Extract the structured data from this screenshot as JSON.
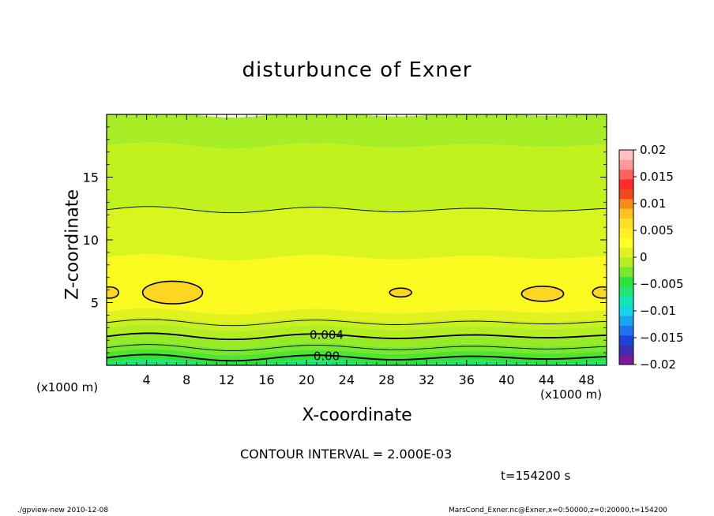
{
  "chart_data": {
    "type": "contour",
    "title": "disturbunce of Exner",
    "xlabel": "X-coordinate",
    "ylabel": "Z-coordinate",
    "x_unit_label": "(x1000 m)",
    "xlim": [
      0,
      50
    ],
    "ylim": [
      0,
      20
    ],
    "x_ticks": [
      4,
      8,
      12,
      16,
      20,
      24,
      28,
      32,
      36,
      40,
      44,
      48
    ],
    "y_ticks": [
      5,
      10,
      15
    ],
    "contour_interval_text": "CONTOUR INTERVAL = 2.000E-03",
    "contour_labels": [
      "0.004",
      "0.00"
    ],
    "time_label": "t=154200 s",
    "colorbar": {
      "range": [
        -0.02,
        0.02
      ],
      "tick_labels": [
        "0.02",
        "0.015",
        "0.01",
        "0.005",
        "0",
        "−0.005",
        "−0.01",
        "−0.015",
        "−0.02"
      ],
      "colors": [
        "#7a1a9a",
        "#3b2fb0",
        "#1a44d8",
        "#1f73f2",
        "#19a4ef",
        "#14d4ea",
        "#10e6b4",
        "#1ee678",
        "#2ee23c",
        "#78e82a",
        "#b2ee22",
        "#e2f21e",
        "#ffff20",
        "#fff020",
        "#fde020",
        "#fcc21e",
        "#f98a1c",
        "#f4461a",
        "#ff2a2a",
        "#ff6060",
        "#ff9898",
        "#ffc0c0"
      ]
    },
    "bands_z": [
      {
        "z_top": 0.22,
        "color": "#1ee678"
      },
      {
        "z_top": 0.55,
        "color": "#2ee23c"
      },
      {
        "z_top": 1.05,
        "color": "#50e430"
      },
      {
        "z_top": 1.6,
        "color": "#78e82a"
      },
      {
        "z_top": 2.2,
        "color": "#96eb26"
      },
      {
        "z_top": 3.0,
        "color": "#b2ee22"
      },
      {
        "z_top": 3.6,
        "color": "#c8f01e"
      },
      {
        "z_top": 4.3,
        "color": "#e2f21e"
      },
      {
        "z_top": 8.6,
        "color": "#fafa20"
      },
      {
        "z_top": 12.3,
        "color": "#d8f61e"
      },
      {
        "z_top": 17.5,
        "color": "#c2f21e"
      },
      {
        "z_top": 20.0,
        "color": "#a8ee26"
      }
    ],
    "contours_z": [
      {
        "z": 0.6,
        "thick": true
      },
      {
        "z": 1.4,
        "thick": false
      },
      {
        "z": 2.3,
        "thick": true
      },
      {
        "z": 3.4,
        "thick": false
      },
      {
        "z": 12.4,
        "thick": false
      }
    ],
    "blobs": [
      {
        "x": 6.6,
        "z": 5.8,
        "rx": 3.0,
        "rz": 0.9,
        "color": "#fcd620"
      },
      {
        "x": 29.4,
        "z": 5.8,
        "rx": 1.1,
        "rz": 0.35,
        "color": "#fcd620"
      },
      {
        "x": 43.6,
        "z": 5.7,
        "rx": 2.1,
        "rz": 0.6,
        "color": "#fcd620"
      },
      {
        "x": 49.6,
        "z": 5.8,
        "rx": 1.0,
        "rz": 0.45,
        "color": "#fcd620"
      },
      {
        "x": 0.3,
        "z": 5.8,
        "rx": 0.9,
        "rz": 0.45,
        "color": "#fcd620"
      }
    ]
  },
  "footer": {
    "left": "./gpview-new   2010-12-08",
    "right": "MarsCond_Exner.nc@Exner,x=0:50000,z=0:20000,t=154200"
  }
}
